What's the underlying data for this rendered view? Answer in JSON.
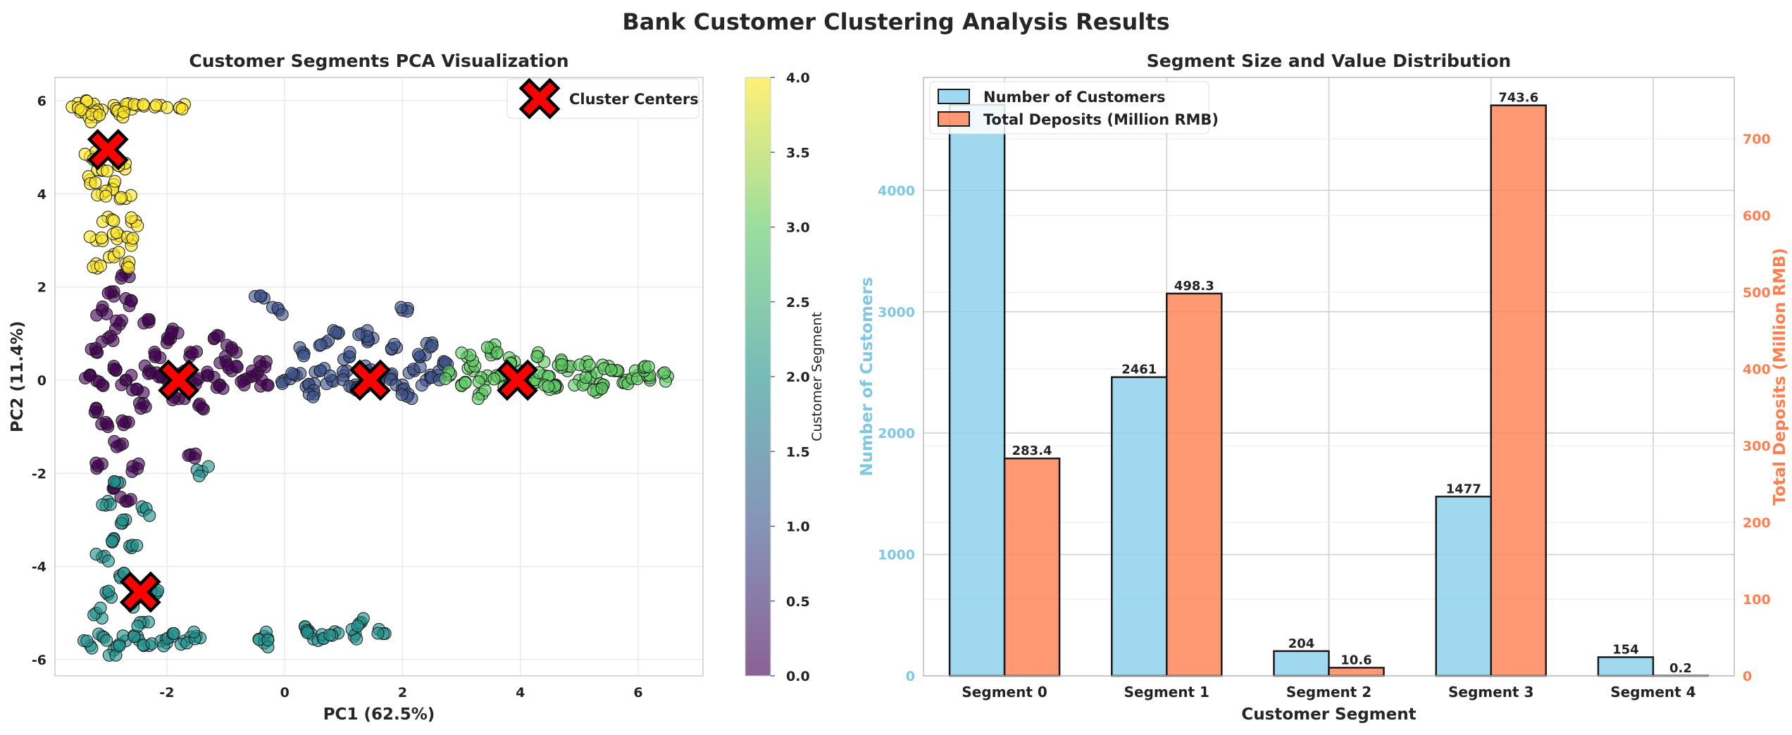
{
  "figure": {
    "title": "Bank Customer Clustering Analysis Results"
  },
  "chart_data": [
    {
      "type": "scatter",
      "title": "Customer Segments PCA Visualization",
      "xlabel": "PC1 (62.5%)",
      "ylabel": "PC2 (11.4%)",
      "xlim": [
        -3.9,
        7.1
      ],
      "ylim": [
        -6.35,
        6.5
      ],
      "xticks": [
        -2,
        0,
        2,
        4,
        6
      ],
      "yticks": [
        -6,
        -4,
        -2,
        0,
        2,
        4,
        6
      ],
      "xtick_labels": [
        "-2",
        "0",
        "2",
        "4",
        "6"
      ],
      "ytick_labels": [
        "-6",
        "-4",
        "-2",
        "0",
        "2",
        "4",
        "6"
      ],
      "grid": true,
      "legend": {
        "position": "top-right",
        "entries": [
          "Cluster Centers"
        ]
      },
      "colorbar": {
        "label": "Customer Segment",
        "range": [
          0,
          4
        ],
        "ticks": [
          "0.0",
          "0.5",
          "1.0",
          "1.5",
          "2.0",
          "2.5",
          "3.0",
          "3.5",
          "4.0"
        ],
        "colormap": [
          "#440154",
          "#3b528b",
          "#21918c",
          "#5ec962",
          "#fde725"
        ]
      },
      "cluster_centers": [
        {
          "segment": 0,
          "x": -1.8,
          "y": 0.0
        },
        {
          "segment": 1,
          "x": 1.45,
          "y": 0.0
        },
        {
          "segment": 2,
          "x": -2.45,
          "y": -4.55
        },
        {
          "segment": 3,
          "x": 3.95,
          "y": 0.0
        },
        {
          "segment": 4,
          "x": -3.0,
          "y": 4.95
        }
      ],
      "series": [
        {
          "segment": 0,
          "color": "#440154",
          "points": [
            [
              -3.3,
              0.1
            ],
            [
              -3.1,
              -0.1
            ],
            [
              -2.9,
              0.3
            ],
            [
              -2.7,
              0.0
            ],
            [
              -2.5,
              -0.2
            ],
            [
              -2.3,
              0.2
            ],
            [
              -2.1,
              0.1
            ],
            [
              -1.9,
              -0.1
            ],
            [
              -1.7,
              0.2
            ],
            [
              -1.5,
              0.0
            ],
            [
              -1.3,
              0.1
            ],
            [
              -1.1,
              -0.1
            ],
            [
              -0.9,
              0.2
            ],
            [
              -0.7,
              0.0
            ],
            [
              -0.5,
              0.1
            ],
            [
              -0.3,
              -0.1
            ],
            [
              -3.2,
              0.6
            ],
            [
              -3.0,
              0.9
            ],
            [
              -2.8,
              1.2
            ],
            [
              -3.1,
              1.5
            ],
            [
              -2.9,
              1.9
            ],
            [
              -2.7,
              2.3
            ],
            [
              -3.2,
              -0.6
            ],
            [
              -3.0,
              -1.0
            ],
            [
              -2.8,
              -1.4
            ],
            [
              -3.1,
              -1.8
            ],
            [
              -2.9,
              -2.3
            ],
            [
              -2.7,
              -2.6
            ],
            [
              -2.2,
              0.5
            ],
            [
              -2.0,
              0.8
            ],
            [
              -1.6,
              0.6
            ],
            [
              -1.2,
              0.9
            ],
            [
              -1.0,
              0.4
            ],
            [
              -2.4,
              -0.5
            ],
            [
              -1.8,
              -0.4
            ],
            [
              -1.4,
              -0.6
            ],
            [
              -1.6,
              -1.6
            ],
            [
              -2.3,
              1.3
            ],
            [
              -2.6,
              1.7
            ],
            [
              -1.9,
              1.1
            ],
            [
              -0.9,
              0.7
            ],
            [
              -2.7,
              -0.9
            ],
            [
              -0.4,
              0.3
            ],
            [
              -2.5,
              -1.9
            ]
          ]
        },
        {
          "segment": 1,
          "color": "#3b528b",
          "points": [
            [
              0.0,
              0.0
            ],
            [
              0.2,
              0.1
            ],
            [
              0.4,
              -0.1
            ],
            [
              0.6,
              0.2
            ],
            [
              0.8,
              0.0
            ],
            [
              1.0,
              0.1
            ],
            [
              1.2,
              -0.1
            ],
            [
              1.4,
              0.2
            ],
            [
              1.6,
              0.0
            ],
            [
              1.8,
              0.1
            ],
            [
              2.0,
              -0.1
            ],
            [
              2.2,
              0.2
            ],
            [
              2.4,
              0.0
            ],
            [
              2.6,
              0.1
            ],
            [
              0.3,
              0.6
            ],
            [
              0.7,
              0.8
            ],
            [
              1.1,
              0.5
            ],
            [
              1.5,
              0.9
            ],
            [
              1.9,
              0.7
            ],
            [
              2.3,
              0.5
            ],
            [
              2.7,
              0.4
            ],
            [
              0.5,
              -0.3
            ],
            [
              1.3,
              -0.2
            ],
            [
              2.1,
              -0.3
            ],
            [
              -0.4,
              1.8
            ],
            [
              -0.1,
              1.5
            ],
            [
              1.3,
              1.0
            ],
            [
              2.0,
              1.5
            ],
            [
              0.9,
              1.0
            ],
            [
              2.5,
              0.8
            ]
          ]
        },
        {
          "segment": 2,
          "color": "#21918c",
          "points": [
            [
              -3.3,
              -5.7
            ],
            [
              -3.1,
              -5.5
            ],
            [
              -2.9,
              -5.8
            ],
            [
              -2.7,
              -5.6
            ],
            [
              -2.5,
              -5.5
            ],
            [
              -2.3,
              -5.7
            ],
            [
              -2.1,
              -5.6
            ],
            [
              -1.9,
              -5.5
            ],
            [
              -1.7,
              -5.6
            ],
            [
              -1.5,
              -5.5
            ],
            [
              -3.2,
              -5.0
            ],
            [
              -3.0,
              -4.6
            ],
            [
              -2.8,
              -4.2
            ],
            [
              -3.1,
              -3.8
            ],
            [
              -2.9,
              -3.4
            ],
            [
              -2.7,
              -3.0
            ],
            [
              -3.0,
              -2.6
            ],
            [
              -2.8,
              -2.2
            ],
            [
              -2.6,
              -4.8
            ],
            [
              -2.4,
              -5.2
            ],
            [
              -2.2,
              -4.6
            ],
            [
              -2.6,
              -3.6
            ],
            [
              -2.4,
              -2.8
            ],
            [
              -1.4,
              -1.96
            ],
            [
              -0.35,
              -5.5
            ],
            [
              -0.35,
              -5.65
            ],
            [
              0.35,
              -5.3
            ],
            [
              0.45,
              -5.45
            ],
            [
              0.65,
              -5.55
            ],
            [
              0.85,
              -5.4
            ],
            [
              1.2,
              -5.45
            ],
            [
              1.3,
              -5.2
            ],
            [
              1.6,
              -5.35
            ]
          ]
        },
        {
          "segment": 3,
          "color": "#5ec962",
          "points": [
            [
              2.8,
              0.1
            ],
            [
              3.0,
              -0.1
            ],
            [
              3.2,
              0.2
            ],
            [
              3.4,
              0.0
            ],
            [
              3.6,
              0.1
            ],
            [
              3.8,
              -0.1
            ],
            [
              4.0,
              0.2
            ],
            [
              4.2,
              0.0
            ],
            [
              4.4,
              0.1
            ],
            [
              4.6,
              -0.1
            ],
            [
              4.8,
              0.2
            ],
            [
              5.0,
              0.0
            ],
            [
              5.2,
              0.1
            ],
            [
              5.4,
              -0.1
            ],
            [
              5.6,
              0.2
            ],
            [
              5.8,
              0.0
            ],
            [
              6.0,
              0.1
            ],
            [
              6.2,
              0.0
            ],
            [
              3.1,
              0.5
            ],
            [
              3.5,
              0.6
            ],
            [
              3.9,
              0.4
            ],
            [
              4.3,
              0.5
            ],
            [
              4.7,
              0.4
            ],
            [
              5.1,
              0.3
            ],
            [
              5.5,
              0.3
            ],
            [
              3.3,
              -0.3
            ],
            [
              4.5,
              -0.2
            ],
            [
              5.3,
              -0.2
            ],
            [
              6.5,
              0.08
            ],
            [
              6.1,
              0.2
            ],
            [
              3.5,
              0.7
            ]
          ]
        },
        {
          "segment": 4,
          "color": "#fde725",
          "points": [
            [
              -3.5,
              5.85
            ],
            [
              -3.3,
              5.9
            ],
            [
              -3.1,
              5.8
            ],
            [
              -2.9,
              5.9
            ],
            [
              -2.7,
              5.85
            ],
            [
              -2.5,
              5.9
            ],
            [
              -3.4,
              5.75
            ],
            [
              -3.2,
              5.65
            ],
            [
              -2.8,
              5.7
            ],
            [
              -3.3,
              4.8
            ],
            [
              -3.1,
              4.5
            ],
            [
              -2.9,
              4.2
            ],
            [
              -2.7,
              3.9
            ],
            [
              -3.0,
              3.5
            ],
            [
              -2.8,
              3.1
            ],
            [
              -2.6,
              3.4
            ],
            [
              -3.2,
              3.0
            ],
            [
              -2.9,
              2.7
            ],
            [
              -2.7,
              2.5
            ],
            [
              -3.1,
              4.0
            ],
            [
              -2.8,
              4.6
            ],
            [
              -3.3,
              4.3
            ],
            [
              -2.6,
              3.0
            ],
            [
              -3.2,
              2.5
            ],
            [
              -2.1,
              5.9
            ],
            [
              -1.7,
              5.92
            ]
          ]
        }
      ]
    },
    {
      "type": "bar",
      "title": "Segment Size and Value Distribution",
      "xlabel": "Customer Segment",
      "ylabel": "Number of Customers",
      "ylabel_right": "Total Deposits (Million RMB)",
      "categories": [
        "Segment 0",
        "Segment 1",
        "Segment 2",
        "Segment 3",
        "Segment 4"
      ],
      "ylim": [
        0,
        4930
      ],
      "ylim_right": [
        0,
        780
      ],
      "yticks": [
        0,
        1000,
        2000,
        3000,
        4000
      ],
      "yticks_right": [
        0,
        100,
        200,
        300,
        400,
        500,
        600,
        700
      ],
      "ytick_labels": [
        "0",
        "1000",
        "2000",
        "3000",
        "4000"
      ],
      "ytick_labels_right": [
        "0",
        "100",
        "200",
        "300",
        "400",
        "500",
        "600",
        "700"
      ],
      "grid": true,
      "legend": {
        "position": "top-left"
      },
      "series": [
        {
          "name": "Number of Customers",
          "axis": "left",
          "color": "#87ceeb",
          "values": [
            4704,
            2461,
            204,
            1477,
            154
          ],
          "labels": [
            "",
            "2461",
            "204",
            "1477",
            "154"
          ]
        },
        {
          "name": "Total Deposits (Million RMB)",
          "axis": "right",
          "color": "#ff7f50",
          "values": [
            283.4,
            498.3,
            10.6,
            743.6,
            0.2
          ],
          "labels": [
            "283.4",
            "498.3",
            "10.6",
            "743.6",
            "0.2"
          ]
        }
      ]
    }
  ]
}
